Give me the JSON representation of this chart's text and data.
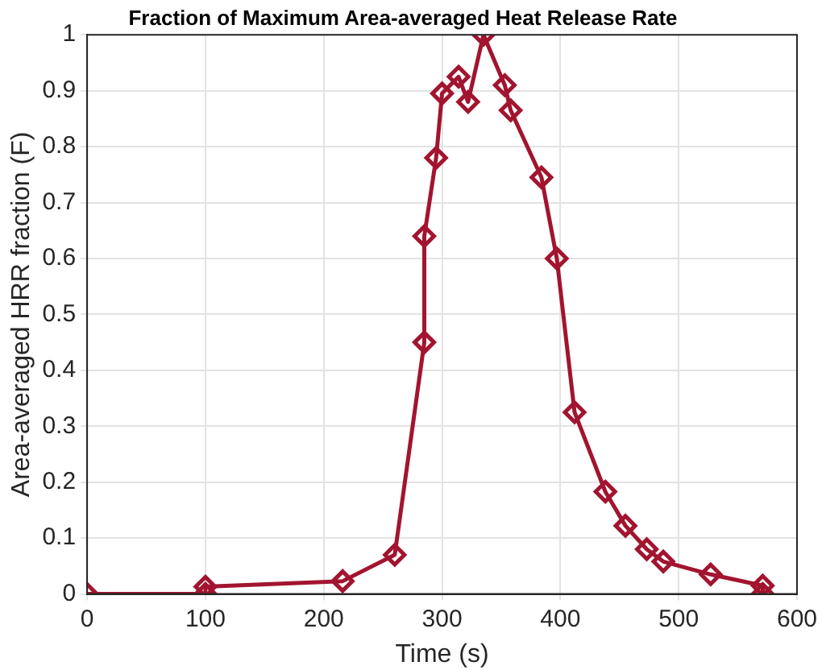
{
  "chart_data": {
    "type": "line",
    "title": "Fraction of Maximum Area-averaged Heat Release Rate",
    "xlabel": "Time (s)",
    "ylabel": "Area-averaged HRR fraction (F)",
    "x": [
      0,
      100,
      100,
      216,
      260,
      285,
      285,
      295,
      300,
      314,
      322,
      335,
      353,
      358,
      384,
      397,
      412,
      438,
      455,
      473,
      487,
      527,
      571,
      571
    ],
    "series": [
      {
        "color": "#a2142f",
        "values": [
          0,
          0,
          0.013,
          0.023,
          0.07,
          0.45,
          0.64,
          0.78,
          0.895,
          0.925,
          0.88,
          1.0,
          0.91,
          0.865,
          0.745,
          0.6,
          0.325,
          0.183,
          0.122,
          0.08,
          0.058,
          0.035,
          0.015,
          0
        ]
      }
    ],
    "xlim": [
      0,
      600
    ],
    "xticks": [
      0,
      100,
      200,
      300,
      400,
      500,
      600
    ],
    "ylim": [
      0,
      1
    ],
    "yticks": [
      0,
      0.1,
      0.2,
      0.3,
      0.4,
      0.5,
      0.6,
      0.7,
      0.8,
      0.9,
      1
    ],
    "grid": true,
    "legend": false,
    "marker": "diamond",
    "line_style": "solid"
  }
}
